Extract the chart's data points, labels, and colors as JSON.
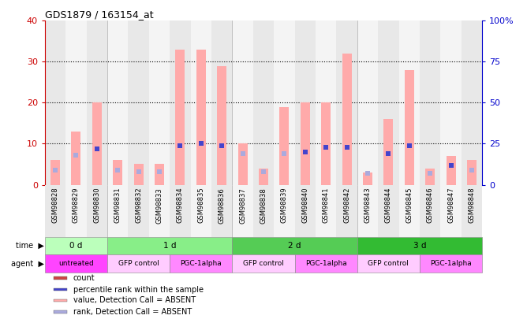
{
  "title": "GDS1879 / 163154_at",
  "samples": [
    "GSM98828",
    "GSM98829",
    "GSM98830",
    "GSM98831",
    "GSM98832",
    "GSM98833",
    "GSM98834",
    "GSM98835",
    "GSM98836",
    "GSM98837",
    "GSM98838",
    "GSM98839",
    "GSM98840",
    "GSM98841",
    "GSM98842",
    "GSM98843",
    "GSM98844",
    "GSM98845",
    "GSM98846",
    "GSM98847",
    "GSM98848"
  ],
  "bar_values": [
    6,
    13,
    20,
    6,
    5,
    5,
    33,
    33,
    29,
    10,
    4,
    19,
    20,
    20,
    32,
    3,
    16,
    28,
    4,
    7,
    6
  ],
  "rank_values": [
    9,
    18,
    22,
    9,
    8,
    8,
    24,
    25,
    24,
    19,
    8,
    19,
    20,
    23,
    23,
    7,
    19,
    24,
    7,
    12,
    9
  ],
  "bar_absent": [
    true,
    true,
    true,
    true,
    true,
    true,
    true,
    true,
    true,
    true,
    true,
    true,
    true,
    true,
    true,
    true,
    true,
    true,
    true,
    true,
    true
  ],
  "rank_absent": [
    true,
    true,
    false,
    true,
    true,
    true,
    false,
    false,
    false,
    true,
    true,
    true,
    false,
    false,
    false,
    true,
    false,
    false,
    true,
    false,
    true
  ],
  "ylim_left": [
    0,
    40
  ],
  "ylim_right": [
    0,
    100
  ],
  "yticks_left": [
    0,
    10,
    20,
    30,
    40
  ],
  "yticks_right": [
    0,
    25,
    50,
    75,
    100
  ],
  "time_groups": [
    {
      "label": "0 d",
      "start": 0,
      "end": 3
    },
    {
      "label": "1 d",
      "start": 3,
      "end": 9
    },
    {
      "label": "2 d",
      "start": 9,
      "end": 15
    },
    {
      "label": "3 d",
      "start": 15,
      "end": 21
    }
  ],
  "time_colors": [
    "#bbffbb",
    "#88ee88",
    "#55cc55",
    "#33bb33"
  ],
  "agent_groups": [
    {
      "label": "untreated",
      "start": 0,
      "end": 3
    },
    {
      "label": "GFP control",
      "start": 3,
      "end": 6
    },
    {
      "label": "PGC-1alpha",
      "start": 6,
      "end": 9
    },
    {
      "label": "GFP control",
      "start": 9,
      "end": 12
    },
    {
      "label": "PGC-1alpha",
      "start": 12,
      "end": 15
    },
    {
      "label": "GFP control",
      "start": 15,
      "end": 18
    },
    {
      "label": "PGC-1alpha",
      "start": 18,
      "end": 21
    }
  ],
  "agent_colors": {
    "untreated": "#ff44ff",
    "GFP control": "#ffccff",
    "PGC-1alpha": "#ff88ff"
  },
  "bar_color_absent": "#ffaaaa",
  "bar_color_present": "#cc4444",
  "rank_color_absent": "#aaaadd",
  "rank_color_present": "#4444cc",
  "col_bg_even": "#e8e8e8",
  "col_bg_odd": "#f4f4f4",
  "axis_left_color": "#cc0000",
  "axis_right_color": "#0000cc",
  "legend_items": [
    {
      "label": "count",
      "color": "#cc4444"
    },
    {
      "label": "percentile rank within the sample",
      "color": "#4444cc"
    },
    {
      "label": "value, Detection Call = ABSENT",
      "color": "#ffaaaa"
    },
    {
      "label": "rank, Detection Call = ABSENT",
      "color": "#aaaadd"
    }
  ]
}
